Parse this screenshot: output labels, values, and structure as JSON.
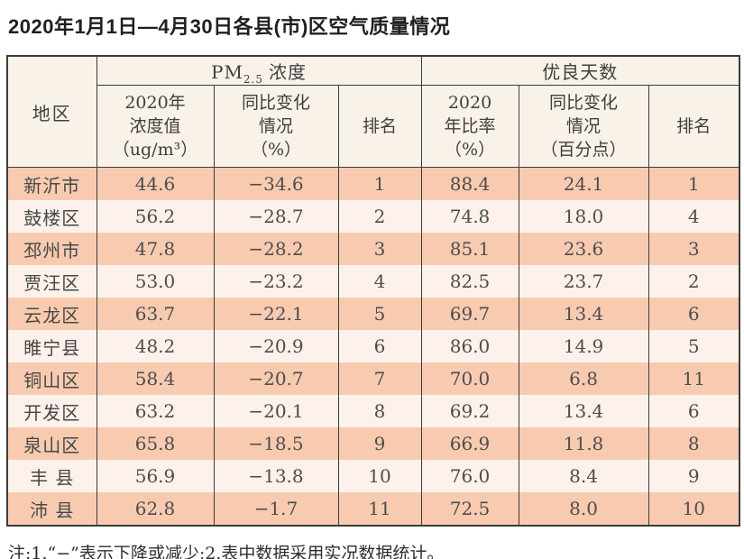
{
  "title": "2020年1月1日—4月30日各县(市)区空气质量情况",
  "footnote": "注:1.“−”表示下降或减少;2.表中数据采用实况数据统计。",
  "colors": {
    "row_dark": "#f8cbb1",
    "row_light": "#fdf2eb",
    "header_bg": "#f9f2e8",
    "border": "#3c3c3c"
  },
  "table": {
    "region_header": "地区",
    "pm_group": {
      "prefix": "PM",
      "subscript": "2.5",
      "suffix": "浓度"
    },
    "good_group": "优良天数",
    "subheads": {
      "pm_value": {
        "l1": "2020年",
        "l2": "浓度值",
        "l3": "（ug/m³）"
      },
      "pm_change": {
        "l1": "同比变化",
        "l2": "情况",
        "l3": "（%）"
      },
      "pm_rank": "排名",
      "good_ratio": {
        "l1": "2020",
        "l2": "年比率",
        "l3": "（%）"
      },
      "good_change": {
        "l1": "同比变化",
        "l2": "情况",
        "l3": "（百分点）"
      },
      "good_rank": "排名"
    },
    "rows": [
      {
        "region": "新沂市",
        "pm_value": "44.6",
        "pm_change": "−34.6",
        "pm_rank": "1",
        "good_ratio": "88.4",
        "good_change": "24.1",
        "good_rank": "1"
      },
      {
        "region": "鼓楼区",
        "pm_value": "56.2",
        "pm_change": "−28.7",
        "pm_rank": "2",
        "good_ratio": "74.8",
        "good_change": "18.0",
        "good_rank": "4"
      },
      {
        "region": "邳州市",
        "pm_value": "47.8",
        "pm_change": "−28.2",
        "pm_rank": "3",
        "good_ratio": "85.1",
        "good_change": "23.6",
        "good_rank": "3"
      },
      {
        "region": "贾汪区",
        "pm_value": "53.0",
        "pm_change": "−23.2",
        "pm_rank": "4",
        "good_ratio": "82.5",
        "good_change": "23.7",
        "good_rank": "2"
      },
      {
        "region": "云龙区",
        "pm_value": "63.7",
        "pm_change": "−22.1",
        "pm_rank": "5",
        "good_ratio": "69.7",
        "good_change": "13.4",
        "good_rank": "6"
      },
      {
        "region": "睢宁县",
        "pm_value": "48.2",
        "pm_change": "−20.9",
        "pm_rank": "6",
        "good_ratio": "86.0",
        "good_change": "14.9",
        "good_rank": "5"
      },
      {
        "region": "铜山区",
        "pm_value": "58.4",
        "pm_change": "−20.7",
        "pm_rank": "7",
        "good_ratio": "70.0",
        "good_change": "6.8",
        "good_rank": "11"
      },
      {
        "region": "开发区",
        "pm_value": "63.2",
        "pm_change": "−20.1",
        "pm_rank": "8",
        "good_ratio": "69.2",
        "good_change": "13.4",
        "good_rank": "6"
      },
      {
        "region": "泉山区",
        "pm_value": "65.8",
        "pm_change": "−18.5",
        "pm_rank": "9",
        "good_ratio": "66.9",
        "good_change": "11.8",
        "good_rank": "8"
      },
      {
        "region": "丰 县",
        "pm_value": "56.9",
        "pm_change": "−13.8",
        "pm_rank": "10",
        "good_ratio": "76.0",
        "good_change": "8.4",
        "good_rank": "9"
      },
      {
        "region": "沛 县",
        "pm_value": "62.8",
        "pm_change": "−1.7",
        "pm_rank": "11",
        "good_ratio": "72.5",
        "good_change": "8.0",
        "good_rank": "10"
      }
    ]
  }
}
